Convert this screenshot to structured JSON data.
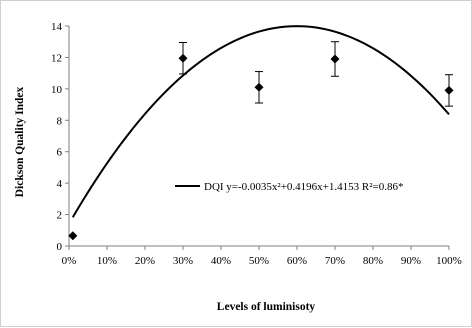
{
  "chart_data": {
    "type": "scatter",
    "title": "",
    "xlabel": "Levels of luminisoty",
    "ylabel": "Dickson Quality Index",
    "xlim": [
      0,
      100
    ],
    "ylim": [
      0,
      14
    ],
    "x_ticks": [
      "0%",
      "10%",
      "20%",
      "30%",
      "40%",
      "50%",
      "60%",
      "70%",
      "80%",
      "90%",
      "100%"
    ],
    "y_ticks": [
      "0",
      "2",
      "4",
      "6",
      "8",
      "10",
      "12",
      "14"
    ],
    "grid": false,
    "marker": "diamond",
    "points": [
      {
        "x": 1,
        "y": 0.65,
        "err": 0
      },
      {
        "x": 30,
        "y": 11.95,
        "err": 1.0
      },
      {
        "x": 50,
        "y": 10.1,
        "err": 1.0
      },
      {
        "x": 70,
        "y": 11.9,
        "err": 1.1
      },
      {
        "x": 100,
        "y": 9.9,
        "err": 1.0
      }
    ],
    "fit": {
      "type": "quadratic",
      "coefficients": {
        "a": -0.0035,
        "b": 0.4196,
        "c": 1.4153
      },
      "x_range": [
        1,
        100
      ]
    },
    "legend": {
      "entries": [
        {
          "series": "DQI",
          "label": "DQI y=-0.0035x²+0.4196x+1.4153   R²=0.86*"
        }
      ],
      "position": "center-right"
    },
    "colors": {
      "line": "#000000",
      "marker": "#000000",
      "axis": "#808080"
    }
  }
}
